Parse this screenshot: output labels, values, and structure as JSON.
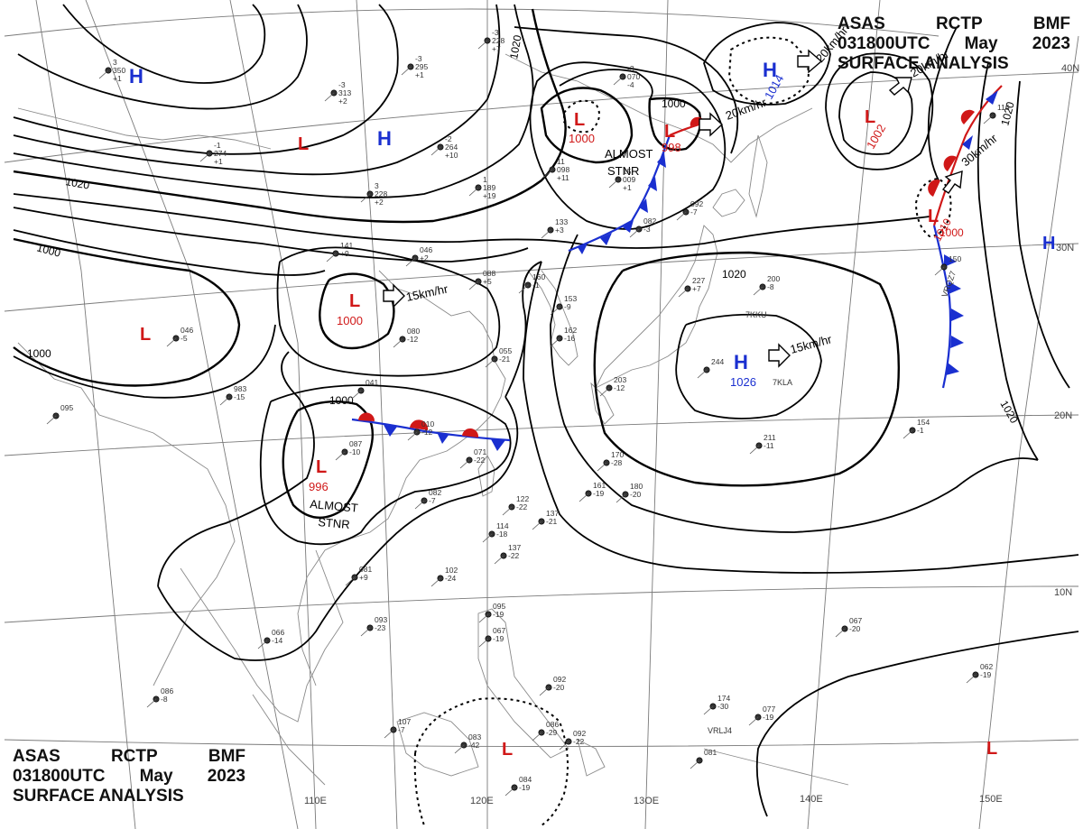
{
  "header": {
    "line1": [
      "ASAS",
      "RCTP",
      "BMF"
    ],
    "line2": [
      "031800UTC",
      "May",
      "2023"
    ],
    "line3": "SURFACE ANALYSIS"
  },
  "longitude_labels": [
    "110E",
    "120E",
    "13OE",
    "140E",
    "150E"
  ],
  "latitude_labels": [
    "40N",
    "30N",
    "20N",
    "10N"
  ],
  "isobar_labels": [
    "1020",
    "1020",
    "1000",
    "1000",
    "1000",
    "1000",
    "1000",
    "1020",
    "1020",
    "1020"
  ],
  "pressure_centers": [
    {
      "type": "H",
      "value": "",
      "color": "#1a2fd0"
    },
    {
      "type": "H",
      "value": "",
      "color": "#1a2fd0"
    },
    {
      "type": "L",
      "value": "",
      "color": "#d01818"
    },
    {
      "type": "L",
      "value": "1000",
      "color": "#d01818"
    },
    {
      "type": "L",
      "value": "998",
      "color": "#d01818"
    },
    {
      "type": "H",
      "value": "1014",
      "color": "#1a2fd0"
    },
    {
      "type": "L",
      "value": "1002",
      "color": "#d01818"
    },
    {
      "type": "L",
      "value": "1010",
      "color": "#d01818"
    },
    {
      "type": "H",
      "value": "",
      "color": "#1a2fd0"
    },
    {
      "type": "L",
      "value": "1000",
      "color": "#d01818"
    },
    {
      "type": "L",
      "value": "",
      "color": "#d01818"
    },
    {
      "type": "H",
      "value": "1026",
      "color": "#1a2fd0"
    },
    {
      "type": "L",
      "value": "996",
      "color": "#d01818"
    },
    {
      "type": "L",
      "value": "",
      "color": "#d01818"
    },
    {
      "type": "L",
      "value": "",
      "color": "#d01818"
    }
  ],
  "motion_labels": [
    "20km/hr",
    "20km/hr",
    "20km/hr",
    "30km/hr",
    "15km/hr",
    "15km/hr"
  ],
  "annotations": [
    {
      "line1": "ALMOST",
      "line2": "STNR"
    },
    {
      "line1": "ALMOST",
      "line2": "STNR"
    }
  ],
  "stations": [
    {
      "id": "s1",
      "values": [
        "-3",
        "228",
        "+7"
      ]
    },
    {
      "id": "s2",
      "values": [
        "-3",
        "295",
        "+1"
      ]
    },
    {
      "id": "s3",
      "values": [
        "-3",
        "313",
        "+2"
      ]
    },
    {
      "id": "s4",
      "values": [
        "3",
        "350",
        "+1"
      ]
    },
    {
      "id": "s5",
      "values": [
        "-1",
        "274",
        "+1"
      ]
    },
    {
      "id": "s6",
      "values": [
        "-2",
        "264",
        "+10"
      ]
    },
    {
      "id": "s7",
      "values": [
        "3",
        "228",
        "+2"
      ]
    },
    {
      "id": "s8",
      "values": [
        "1",
        "189",
        "+19"
      ]
    },
    {
      "id": "s9",
      "values": [
        "11",
        "098",
        "+11"
      ]
    },
    {
      "id": "s10",
      "values": [
        "15",
        "009",
        "+1"
      ]
    },
    {
      "id": "s11",
      "values": [
        "-3",
        "070",
        "-4"
      ]
    },
    {
      "id": "s12",
      "values": [
        "082",
        "-3"
      ]
    },
    {
      "id": "s13",
      "values": [
        "092",
        "-7"
      ]
    },
    {
      "id": "s14",
      "values": [
        "133",
        "+3"
      ]
    },
    {
      "id": "s15",
      "values": [
        "141",
        "+9"
      ]
    },
    {
      "id": "s16",
      "values": [
        "046",
        "+2"
      ]
    },
    {
      "id": "s17",
      "values": [
        "160",
        "-1"
      ]
    },
    {
      "id": "s18",
      "values": [
        "088",
        "+5"
      ]
    },
    {
      "id": "s19",
      "values": [
        "153",
        "-9"
      ]
    },
    {
      "id": "s20",
      "values": [
        "162",
        "-16"
      ]
    },
    {
      "id": "s21",
      "values": [
        "200",
        "-8"
      ]
    },
    {
      "id": "s22",
      "values": [
        "227",
        "+7"
      ]
    },
    {
      "id": "s23",
      "values": [
        "046",
        "-5"
      ]
    },
    {
      "id": "s24",
      "values": [
        "080",
        "-12"
      ]
    },
    {
      "id": "s25",
      "values": [
        "055",
        "-21"
      ]
    },
    {
      "id": "s26",
      "values": [
        "983",
        "-15"
      ]
    },
    {
      "id": "s27",
      "values": [
        "095"
      ]
    },
    {
      "id": "s28",
      "values": [
        "203",
        "-12"
      ]
    },
    {
      "id": "s29",
      "values": [
        "244"
      ]
    },
    {
      "id": "s30",
      "values": [
        "041"
      ]
    },
    {
      "id": "s31",
      "values": [
        "010",
        "-12"
      ]
    },
    {
      "id": "s32",
      "values": [
        "071",
        "-22"
      ]
    },
    {
      "id": "s33",
      "values": [
        "087",
        "-10"
      ]
    },
    {
      "id": "s34",
      "values": [
        "170",
        "-28"
      ]
    },
    {
      "id": "s35",
      "values": [
        "211",
        "-11"
      ]
    },
    {
      "id": "s36",
      "values": [
        "154",
        "-1"
      ]
    },
    {
      "id": "s37",
      "values": [
        "082",
        "-7"
      ]
    },
    {
      "id": "s38",
      "values": [
        "122",
        "-22"
      ]
    },
    {
      "id": "s39",
      "values": [
        "137",
        "-21"
      ]
    },
    {
      "id": "s40",
      "values": [
        "161",
        "-19"
      ]
    },
    {
      "id": "s41",
      "values": [
        "180",
        "-20"
      ]
    },
    {
      "id": "s42",
      "values": [
        "114",
        "-18"
      ]
    },
    {
      "id": "s43",
      "values": [
        "137",
        "-22"
      ]
    },
    {
      "id": "s44",
      "values": [
        "081",
        "+9"
      ]
    },
    {
      "id": "s45",
      "values": [
        "102",
        "-24"
      ]
    },
    {
      "id": "s46",
      "values": [
        "066",
        "-14"
      ]
    },
    {
      "id": "s47",
      "values": [
        "093",
        "-23"
      ]
    },
    {
      "id": "s48",
      "values": [
        "095",
        "-19"
      ]
    },
    {
      "id": "s49",
      "values": [
        "067",
        "-19"
      ]
    },
    {
      "id": "s50",
      "values": [
        "092",
        "-20"
      ]
    },
    {
      "id": "s51",
      "values": [
        "086",
        "-8"
      ]
    },
    {
      "id": "s52",
      "values": [
        "107",
        "-7"
      ]
    },
    {
      "id": "s53",
      "values": [
        "083",
        "-42"
      ]
    },
    {
      "id": "s54",
      "values": [
        "086",
        "-29"
      ]
    },
    {
      "id": "s55",
      "values": [
        "092",
        "-22"
      ]
    },
    {
      "id": "s56",
      "values": [
        "084",
        "-19"
      ]
    },
    {
      "id": "s57",
      "values": [
        "174",
        "-30"
      ]
    },
    {
      "id": "s58",
      "values": [
        "077",
        "-19"
      ]
    },
    {
      "id": "s59",
      "values": [
        "081"
      ]
    },
    {
      "id": "s60",
      "values": [
        "067",
        "-20"
      ]
    },
    {
      "id": "s61",
      "values": [
        "062",
        "-19"
      ]
    },
    {
      "id": "s62",
      "values": [
        "150"
      ]
    },
    {
      "id": "s63",
      "values": [
        "116"
      ]
    }
  ],
  "ship_ids": [
    "7KKU",
    "7KLA",
    "VRQZ7",
    "VRLJ4"
  ],
  "colors": {
    "isobar": "#000000",
    "cold_front": "#1a2fd0",
    "warm_front": "#d01818",
    "grid": "#7a7a7a",
    "coast": "#8a8a8a"
  }
}
